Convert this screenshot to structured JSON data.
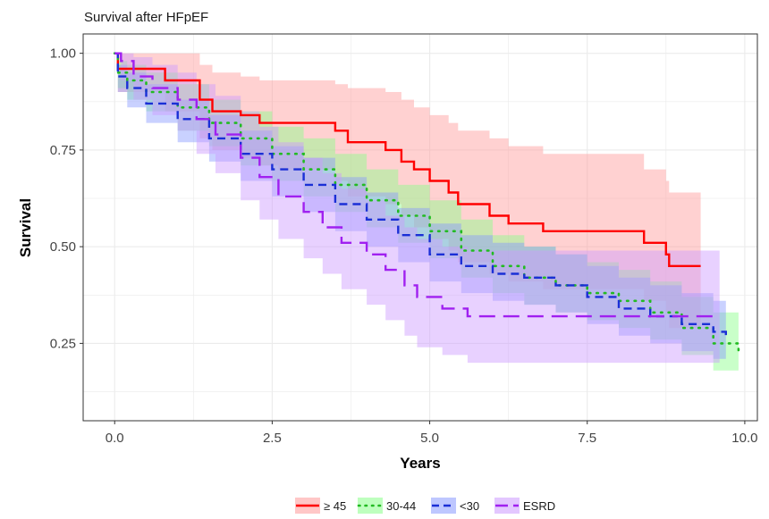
{
  "chart_data": {
    "type": "line",
    "subtype": "kaplan-meier",
    "title": "Survival after HFpEF",
    "xlabel": "Years",
    "ylabel": "Survival",
    "xlim": [
      -0.5,
      10.2
    ],
    "ylim": [
      0.05,
      1.05
    ],
    "x_ticks": [
      0,
      2.5,
      5,
      7.5,
      10
    ],
    "x_tick_labels": [
      "0.0",
      "2.5",
      "5.0",
      "7.5",
      "10.0"
    ],
    "y_ticks": [
      0.25,
      0.5,
      0.75,
      1.0
    ],
    "y_tick_labels": [
      "0.25",
      "0.50",
      "0.75",
      "1.00"
    ],
    "grid": true,
    "legend_position": "bottom",
    "series": [
      {
        "name": "≥ 45",
        "color": "#ff0000",
        "band_color": "#ff9999",
        "dash": "solid",
        "x": [
          0,
          0.05,
          0.25,
          0.8,
          1.35,
          1.55,
          2.0,
          2.3,
          2.6,
          3.2,
          3.5,
          3.7,
          4.3,
          4.55,
          4.75,
          5.0,
          5.3,
          5.45,
          5.95,
          6.25,
          6.8,
          7.5,
          8.4,
          8.75,
          8.8,
          9.3
        ],
        "y": [
          1.0,
          0.96,
          0.96,
          0.93,
          0.88,
          0.85,
          0.84,
          0.82,
          0.82,
          0.82,
          0.8,
          0.77,
          0.75,
          0.72,
          0.7,
          0.67,
          0.64,
          0.61,
          0.58,
          0.56,
          0.54,
          0.54,
          0.51,
          0.48,
          0.45,
          0.45
        ],
        "lower": [
          1.0,
          0.9,
          0.9,
          0.85,
          0.78,
          0.75,
          0.73,
          0.71,
          0.7,
          0.7,
          0.67,
          0.63,
          0.61,
          0.58,
          0.55,
          0.52,
          0.49,
          0.46,
          0.43,
          0.41,
          0.39,
          0.39,
          0.36,
          0.33,
          0.29,
          0.29
        ],
        "upper": [
          1.0,
          1.0,
          1.0,
          1.0,
          0.97,
          0.95,
          0.94,
          0.93,
          0.93,
          0.93,
          0.92,
          0.91,
          0.9,
          0.88,
          0.86,
          0.84,
          0.82,
          0.8,
          0.78,
          0.76,
          0.74,
          0.74,
          0.7,
          0.67,
          0.64,
          0.64
        ]
      },
      {
        "name": "30-44",
        "color": "#22bb22",
        "band_color": "#88ff88",
        "dash": "dotted",
        "x": [
          0,
          0.05,
          0.2,
          0.5,
          1.0,
          1.5,
          2.0,
          2.5,
          3.0,
          3.5,
          4.0,
          4.5,
          5.0,
          5.5,
          6.0,
          6.5,
          7.0,
          7.5,
          8.0,
          8.5,
          9.0,
          9.5,
          9.9
        ],
        "y": [
          1.0,
          0.95,
          0.93,
          0.9,
          0.86,
          0.82,
          0.78,
          0.74,
          0.7,
          0.66,
          0.62,
          0.58,
          0.54,
          0.49,
          0.45,
          0.42,
          0.4,
          0.38,
          0.36,
          0.33,
          0.29,
          0.25,
          0.22
        ],
        "lower": [
          1.0,
          0.91,
          0.88,
          0.85,
          0.8,
          0.76,
          0.71,
          0.67,
          0.63,
          0.59,
          0.55,
          0.51,
          0.47,
          0.42,
          0.38,
          0.35,
          0.33,
          0.31,
          0.29,
          0.26,
          0.22,
          0.18,
          0.15
        ],
        "upper": [
          1.0,
          0.98,
          0.97,
          0.95,
          0.92,
          0.88,
          0.85,
          0.81,
          0.78,
          0.74,
          0.7,
          0.66,
          0.62,
          0.57,
          0.53,
          0.5,
          0.48,
          0.46,
          0.44,
          0.41,
          0.37,
          0.33,
          0.3
        ]
      },
      {
        "name": "<30",
        "color": "#1a2fd6",
        "band_color": "#8899ff",
        "dash": "dashed",
        "x": [
          0,
          0.05,
          0.2,
          0.5,
          1.0,
          1.5,
          2.0,
          2.5,
          3.0,
          3.5,
          4.0,
          4.5,
          5.0,
          5.5,
          6.0,
          6.5,
          7.0,
          7.5,
          8.0,
          8.5,
          9.0,
          9.5,
          9.7
        ],
        "y": [
          1.0,
          0.94,
          0.91,
          0.87,
          0.83,
          0.78,
          0.74,
          0.7,
          0.66,
          0.61,
          0.57,
          0.53,
          0.48,
          0.45,
          0.43,
          0.42,
          0.4,
          0.37,
          0.34,
          0.32,
          0.3,
          0.28,
          0.27
        ],
        "lower": [
          1.0,
          0.9,
          0.86,
          0.82,
          0.77,
          0.72,
          0.67,
          0.63,
          0.59,
          0.54,
          0.5,
          0.46,
          0.41,
          0.38,
          0.36,
          0.35,
          0.33,
          0.3,
          0.27,
          0.25,
          0.23,
          0.21,
          0.2
        ],
        "upper": [
          1.0,
          0.97,
          0.95,
          0.92,
          0.88,
          0.84,
          0.8,
          0.76,
          0.73,
          0.68,
          0.64,
          0.6,
          0.56,
          0.53,
          0.51,
          0.5,
          0.48,
          0.45,
          0.42,
          0.4,
          0.38,
          0.36,
          0.35
        ]
      },
      {
        "name": "ESRD",
        "color": "#a020f0",
        "band_color": "#cc99ff",
        "dash": "longdash",
        "x": [
          0,
          0.1,
          0.3,
          0.6,
          1.0,
          1.3,
          1.6,
          2.0,
          2.3,
          2.6,
          3.0,
          3.3,
          3.6,
          4.0,
          4.3,
          4.6,
          4.8,
          5.2,
          5.6,
          6.0,
          6.5,
          7.0,
          7.5,
          8.0,
          8.5,
          9.0,
          9.6
        ],
        "y": [
          1.0,
          0.98,
          0.94,
          0.91,
          0.88,
          0.83,
          0.79,
          0.73,
          0.68,
          0.63,
          0.59,
          0.55,
          0.51,
          0.48,
          0.44,
          0.4,
          0.37,
          0.34,
          0.32,
          0.32,
          0.32,
          0.32,
          0.32,
          0.32,
          0.32,
          0.32,
          0.32
        ],
        "lower": [
          1.0,
          0.93,
          0.88,
          0.84,
          0.8,
          0.74,
          0.69,
          0.62,
          0.57,
          0.52,
          0.47,
          0.43,
          0.39,
          0.35,
          0.31,
          0.27,
          0.24,
          0.22,
          0.2,
          0.2,
          0.2,
          0.2,
          0.2,
          0.2,
          0.2,
          0.2,
          0.2
        ],
        "upper": [
          1.0,
          1.0,
          0.99,
          0.97,
          0.95,
          0.92,
          0.89,
          0.85,
          0.81,
          0.77,
          0.73,
          0.69,
          0.65,
          0.62,
          0.58,
          0.55,
          0.52,
          0.5,
          0.49,
          0.49,
          0.49,
          0.49,
          0.49,
          0.49,
          0.49,
          0.49,
          0.49
        ]
      }
    ]
  }
}
